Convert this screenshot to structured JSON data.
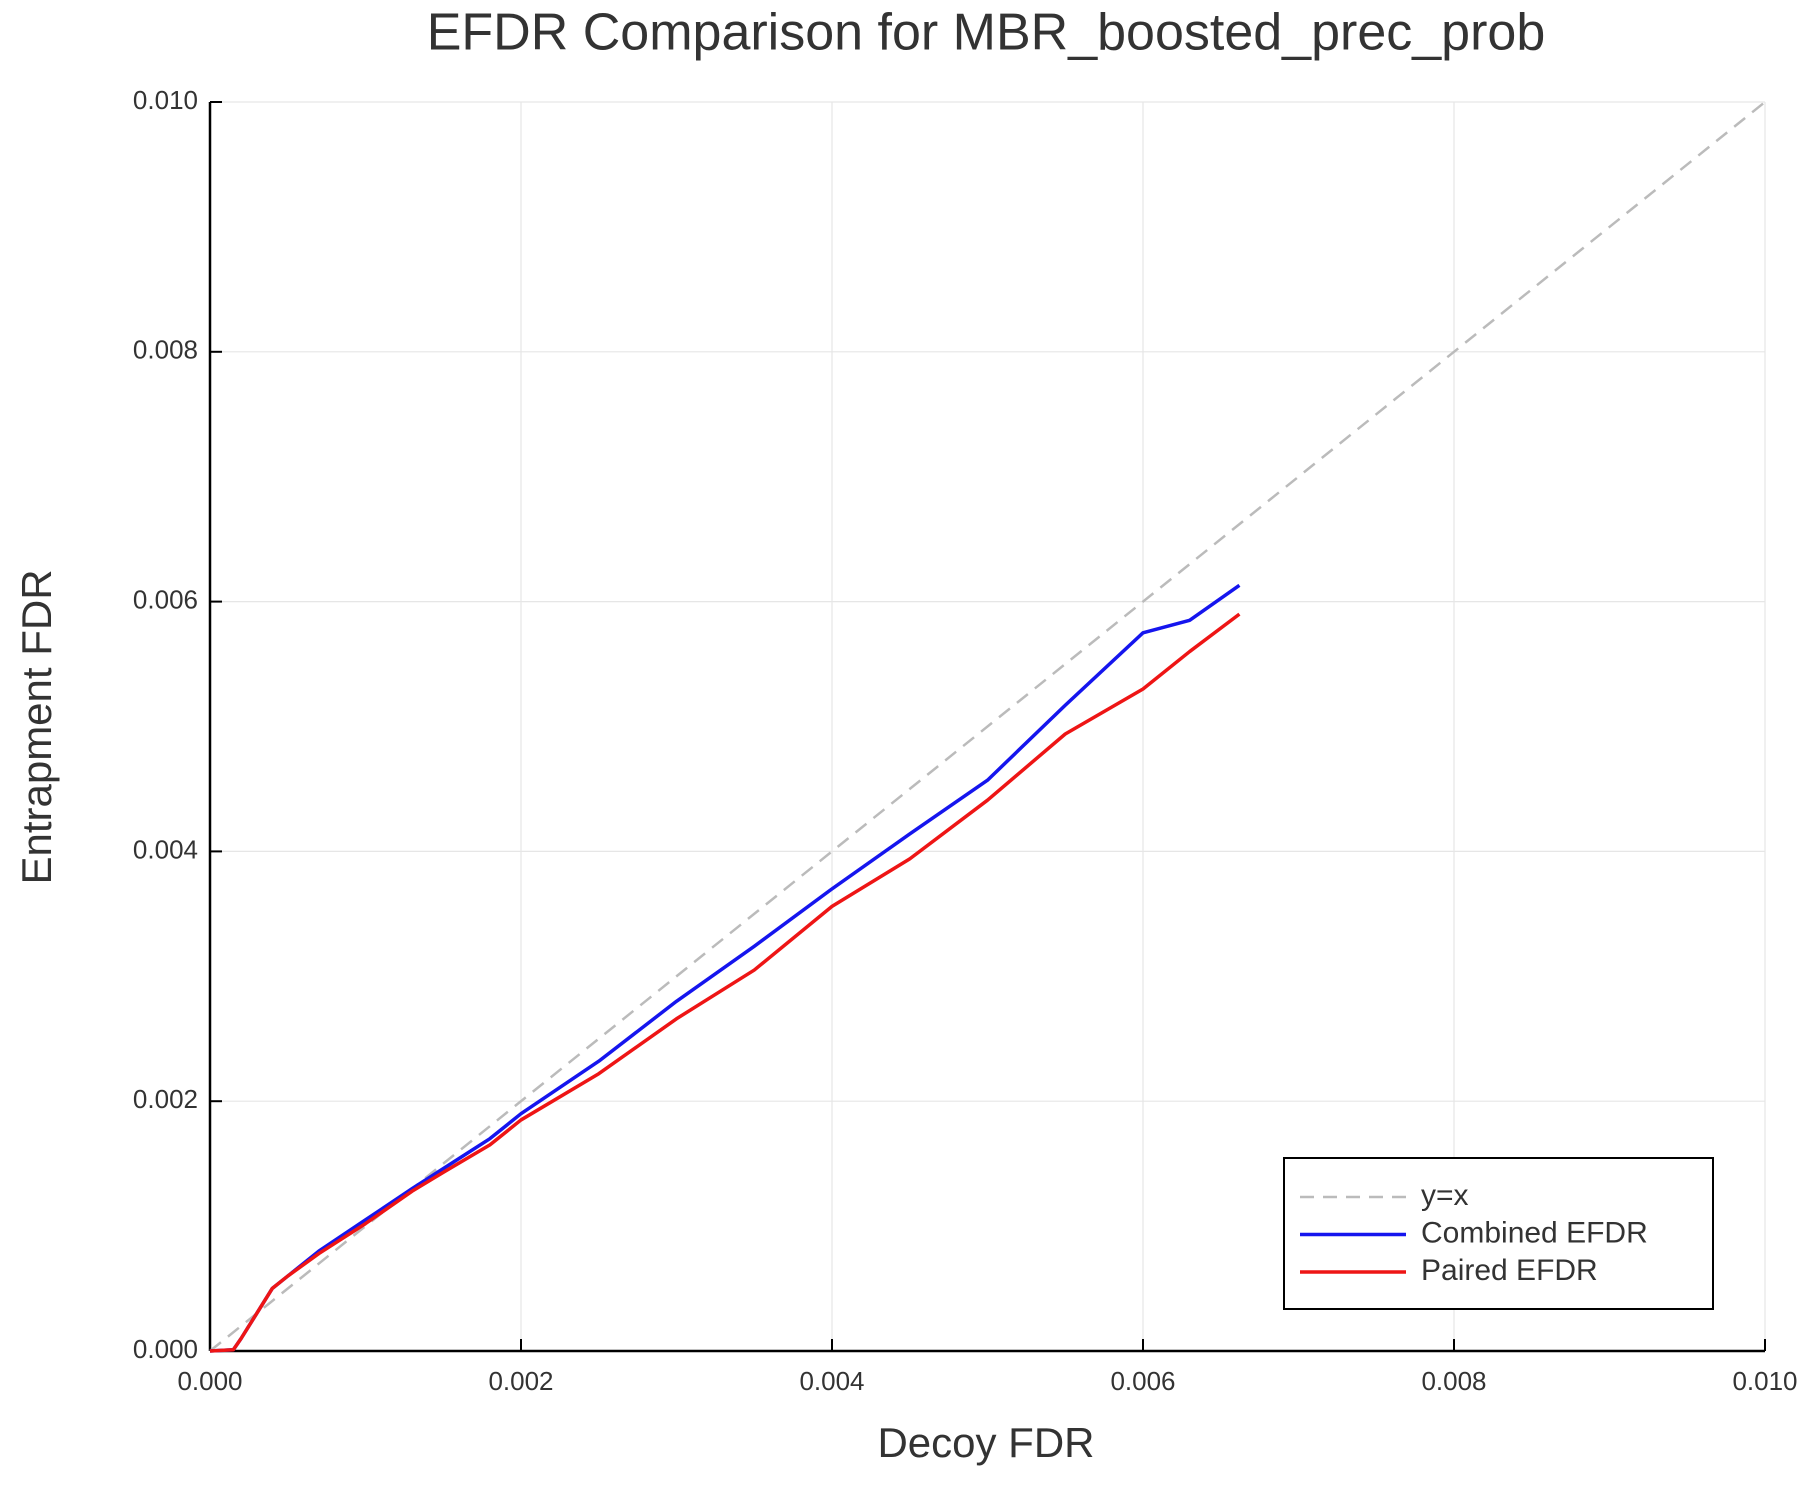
{
  "chart_data": {
    "type": "line",
    "title": "EFDR Comparison for MBR_boosted_prec_prob",
    "xlabel": "Decoy FDR",
    "ylabel": "Entrapment FDR",
    "xlim": [
      0,
      0.01
    ],
    "ylim": [
      0,
      0.01
    ],
    "xticks": [
      {
        "value": 0,
        "label": "0.000"
      },
      {
        "value": 0.002,
        "label": "0.002"
      },
      {
        "value": 0.004,
        "label": "0.004"
      },
      {
        "value": 0.006,
        "label": "0.006"
      },
      {
        "value": 0.008,
        "label": "0.008"
      },
      {
        "value": 0.01,
        "label": "0.010"
      }
    ],
    "yticks": [
      {
        "value": 0,
        "label": "0.000"
      },
      {
        "value": 0.002,
        "label": "0.002"
      },
      {
        "value": 0.004,
        "label": "0.004"
      },
      {
        "value": 0.006,
        "label": "0.006"
      },
      {
        "value": 0.008,
        "label": "0.008"
      },
      {
        "value": 0.01,
        "label": "0.010"
      }
    ],
    "grid": true,
    "legend": "lower right",
    "series": [
      {
        "name": "y=x",
        "color": "#bbbbbb",
        "dashed": true,
        "x": [
          0,
          0.01
        ],
        "values": [
          0,
          0.01
        ]
      },
      {
        "name": "Combined EFDR",
        "color": "#1515ee",
        "dashed": false,
        "x": [
          0,
          0.00015,
          0.0002,
          0.0003,
          0.0004,
          0.0005,
          0.0007,
          0.001,
          0.0013,
          0.0015,
          0.0018,
          0.002,
          0.0025,
          0.003,
          0.0035,
          0.004,
          0.0045,
          0.005,
          0.0055,
          0.006,
          0.0063,
          0.00662
        ],
        "values": [
          0,
          1e-05,
          0.0001,
          0.0003,
          0.0005,
          0.0006,
          0.0008,
          0.00105,
          0.0013,
          0.00146,
          0.0017,
          0.0019,
          0.00232,
          0.0028,
          0.00324,
          0.0037,
          0.00414,
          0.00457,
          0.00517,
          0.00575,
          0.00585,
          0.00613
        ]
      },
      {
        "name": "Paired EFDR",
        "color": "#ee1515",
        "dashed": false,
        "x": [
          0,
          0.00015,
          0.0002,
          0.0003,
          0.0004,
          0.0005,
          0.0007,
          0.001,
          0.0013,
          0.0015,
          0.0018,
          0.002,
          0.0025,
          0.003,
          0.0035,
          0.004,
          0.0045,
          0.005,
          0.0055,
          0.006,
          0.0063,
          0.00662
        ],
        "values": [
          0,
          1e-05,
          0.0001,
          0.0003,
          0.0005,
          0.0006,
          0.00078,
          0.00102,
          0.00128,
          0.00143,
          0.00165,
          0.00185,
          0.00222,
          0.00266,
          0.00305,
          0.00356,
          0.00394,
          0.00441,
          0.00494,
          0.0053,
          0.0056,
          0.0059
        ]
      }
    ]
  }
}
